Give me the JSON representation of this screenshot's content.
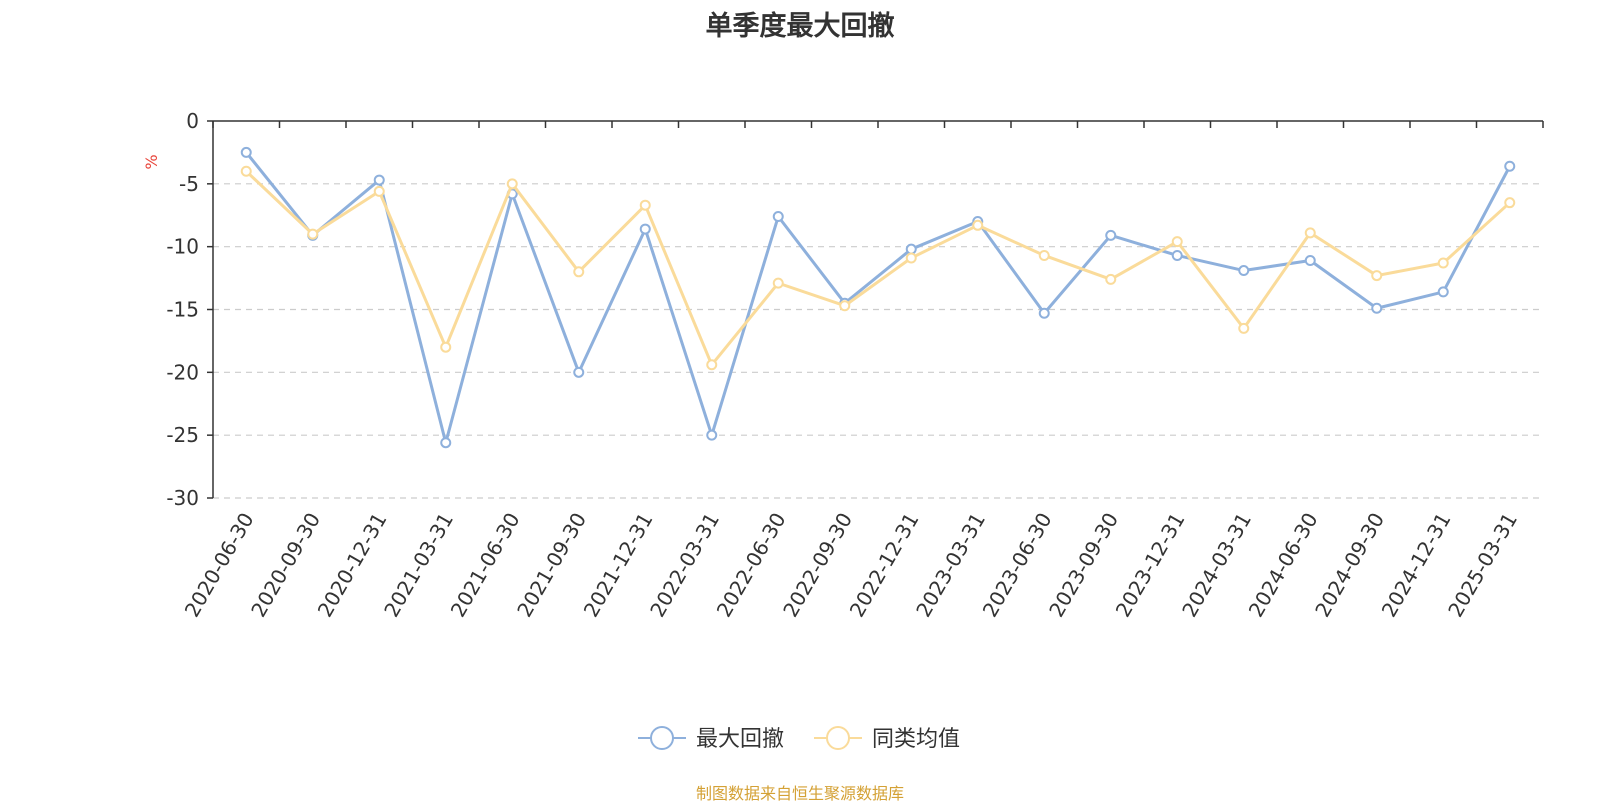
{
  "chart_data": {
    "type": "line",
    "title": "单季度最大回撤",
    "ylabel": "%",
    "xlabel": "",
    "categories": [
      "2020-06-30",
      "2020-09-30",
      "2020-12-31",
      "2021-03-31",
      "2021-06-30",
      "2021-09-30",
      "2021-12-31",
      "2022-03-31",
      "2022-06-30",
      "2022-09-30",
      "2022-12-31",
      "2023-03-31",
      "2023-06-30",
      "2023-09-30",
      "2023-12-31",
      "2024-03-31",
      "2024-06-30",
      "2024-09-30",
      "2024-12-31",
      "2025-03-31"
    ],
    "ylim": [
      -30,
      0
    ],
    "yticks": [
      0,
      -5,
      -10,
      -15,
      -20,
      -25,
      -30
    ],
    "grid": true,
    "legend_position": "bottom",
    "series": [
      {
        "name": "最大回撤",
        "color": "#8eb0dc",
        "values": [
          -2.5,
          -9.1,
          -4.7,
          -25.6,
          -5.8,
          -20.0,
          -8.6,
          -25.0,
          -7.6,
          -14.5,
          -10.2,
          -8.0,
          -15.3,
          -9.1,
          -10.7,
          -11.9,
          -11.1,
          -14.9,
          -13.6,
          -3.6
        ]
      },
      {
        "name": "同类均值",
        "color": "#fadb9a",
        "values": [
          -4.0,
          -9.0,
          -5.6,
          -18.0,
          -5.0,
          -12.0,
          -6.7,
          -19.4,
          -12.9,
          -14.7,
          -10.9,
          -8.3,
          -10.7,
          -12.6,
          -9.6,
          -16.5,
          -8.9,
          -12.3,
          -11.3,
          -6.5
        ]
      }
    ],
    "source_note": "制图数据来自恒生聚源数据库"
  },
  "colors": {
    "axis": "#333333",
    "grid": "#cccccc",
    "ylabel": "#e8443a",
    "footer": "#d4a135",
    "tick_text": "#333333"
  }
}
